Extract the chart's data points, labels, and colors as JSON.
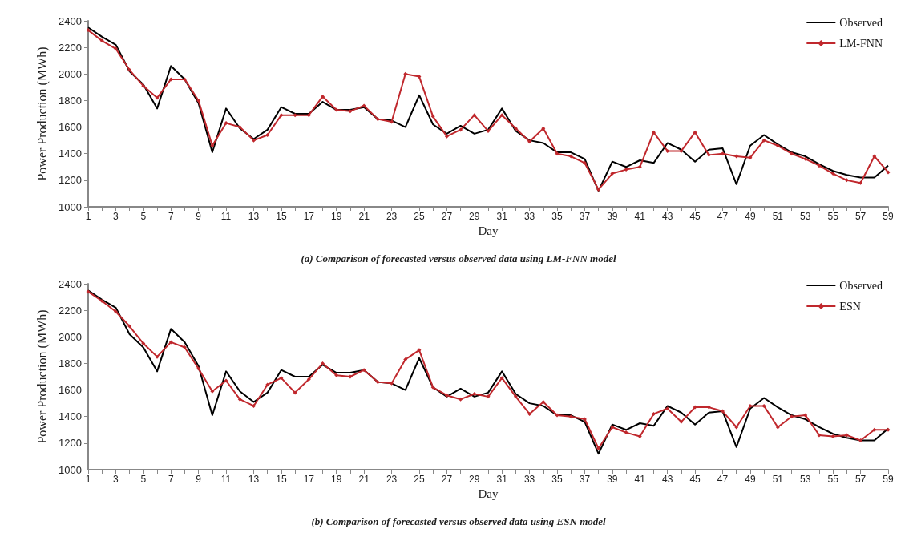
{
  "chart_data": [
    {
      "type": "line",
      "title": "(a) Comparison of forecasted versus observed data using LM-FNN model",
      "xlabel": "Day",
      "ylabel": "Power Production (MWh)",
      "x": [
        1,
        2,
        3,
        4,
        5,
        6,
        7,
        8,
        9,
        10,
        11,
        12,
        13,
        14,
        15,
        16,
        17,
        18,
        19,
        20,
        21,
        22,
        23,
        24,
        25,
        26,
        27,
        28,
        29,
        30,
        31,
        32,
        33,
        34,
        35,
        36,
        37,
        38,
        39,
        40,
        41,
        42,
        43,
        44,
        45,
        46,
        47,
        48,
        49,
        50,
        51,
        52,
        53,
        54,
        55,
        56,
        57,
        58,
        59
      ],
      "xlim": [
        1,
        59
      ],
      "xticks": [
        1,
        {
          "value": 2,
          "label": null
        },
        3,
        {
          "value": 4,
          "label": null
        },
        5,
        {
          "value": 6,
          "label": null
        },
        7,
        {
          "value": 8,
          "label": null
        },
        9,
        {
          "value": 10,
          "label": null
        },
        11,
        {
          "value": 12,
          "label": null
        },
        13,
        {
          "value": 14,
          "label": null
        },
        15,
        {
          "value": 16,
          "label": null
        },
        17,
        {
          "value": 18,
          "label": null
        },
        19,
        {
          "value": 20,
          "label": null
        },
        21,
        {
          "value": 22,
          "label": null
        },
        23,
        {
          "value": 24,
          "label": null
        },
        25,
        {
          "value": 26,
          "label": null
        },
        27,
        {
          "value": 28,
          "label": null
        },
        29,
        {
          "value": 30,
          "label": null
        },
        31,
        {
          "value": 32,
          "label": null
        },
        33,
        {
          "value": 34,
          "label": null
        },
        35,
        {
          "value": 36,
          "label": null
        },
        37,
        {
          "value": 38,
          "label": null
        },
        39,
        {
          "value": 40,
          "label": null
        },
        41,
        {
          "value": 42,
          "label": null
        },
        43,
        {
          "value": 44,
          "label": null
        },
        45,
        {
          "value": 46,
          "label": null
        },
        47,
        {
          "value": 48,
          "label": null
        },
        49,
        {
          "value": 50,
          "label": null
        },
        51,
        {
          "value": 52,
          "label": null
        },
        53,
        {
          "value": 54,
          "label": null
        },
        55,
        {
          "value": 56,
          "label": null
        },
        57,
        {
          "value": 58,
          "label": null
        },
        59
      ],
      "ylim": [
        1000,
        2400
      ],
      "yticks": [
        1000,
        1200,
        1400,
        1600,
        1800,
        2000,
        2200,
        2400
      ],
      "grid": false,
      "legend": "top right",
      "series": [
        {
          "name": "Observed",
          "color": "#000000",
          "marker": "none",
          "values": [
            2350,
            2280,
            2220,
            2020,
            1920,
            1740,
            2060,
            1960,
            1780,
            1410,
            1740,
            1590,
            1510,
            1580,
            1750,
            1700,
            1700,
            1790,
            1730,
            1730,
            1750,
            1660,
            1650,
            1600,
            1840,
            1620,
            1550,
            1610,
            1550,
            1580,
            1740,
            1570,
            1500,
            1480,
            1410,
            1410,
            1360,
            1120,
            1340,
            1300,
            1350,
            1330,
            1480,
            1430,
            1340,
            1430,
            1440,
            1170,
            1460,
            1540,
            1470,
            1410,
            1380,
            1320,
            1270,
            1240,
            1220,
            1220,
            1310
          ]
        },
        {
          "name": "LM-FNN",
          "color": "#c0282d",
          "marker": "diamond",
          "values": [
            2330,
            2250,
            2190,
            2030,
            1910,
            1820,
            1960,
            1960,
            1800,
            1460,
            1630,
            1600,
            1500,
            1540,
            1690,
            1690,
            1690,
            1830,
            1730,
            1720,
            1760,
            1660,
            1640,
            2000,
            1980,
            1680,
            1530,
            1580,
            1690,
            1570,
            1690,
            1590,
            1490,
            1590,
            1400,
            1380,
            1330,
            1130,
            1250,
            1280,
            1300,
            1560,
            1420,
            1420,
            1560,
            1390,
            1400,
            1380,
            1370,
            1500,
            1460,
            1400,
            1360,
            1310,
            1250,
            1200,
            1180,
            1380,
            1260
          ]
        }
      ]
    },
    {
      "type": "line",
      "title": "(b) Comparison of forecasted versus observed data using ESN model",
      "xlabel": "Day",
      "ylabel": "Power Production (MWh)",
      "x": [
        1,
        2,
        3,
        4,
        5,
        6,
        7,
        8,
        9,
        10,
        11,
        12,
        13,
        14,
        15,
        16,
        17,
        18,
        19,
        20,
        21,
        22,
        23,
        24,
        25,
        26,
        27,
        28,
        29,
        30,
        31,
        32,
        33,
        34,
        35,
        36,
        37,
        38,
        39,
        40,
        41,
        42,
        43,
        44,
        45,
        46,
        47,
        48,
        49,
        50,
        51,
        52,
        53,
        54,
        55,
        56,
        57,
        58,
        59
      ],
      "xlim": [
        1,
        59
      ],
      "xticks": [
        1,
        {
          "value": 2,
          "label": null
        },
        3,
        {
          "value": 4,
          "label": null
        },
        5,
        {
          "value": 6,
          "label": null
        },
        7,
        {
          "value": 8,
          "label": null
        },
        9,
        {
          "value": 10,
          "label": null
        },
        11,
        {
          "value": 12,
          "label": null
        },
        13,
        {
          "value": 14,
          "label": null
        },
        15,
        {
          "value": 16,
          "label": null
        },
        17,
        {
          "value": 18,
          "label": null
        },
        19,
        {
          "value": 20,
          "label": null
        },
        21,
        {
          "value": 22,
          "label": null
        },
        23,
        {
          "value": 24,
          "label": null
        },
        25,
        {
          "value": 26,
          "label": null
        },
        27,
        {
          "value": 28,
          "label": null
        },
        29,
        {
          "value": 30,
          "label": null
        },
        31,
        {
          "value": 32,
          "label": null
        },
        33,
        {
          "value": 34,
          "label": null
        },
        35,
        {
          "value": 36,
          "label": null
        },
        37,
        {
          "value": 38,
          "label": null
        },
        39,
        {
          "value": 40,
          "label": null
        },
        41,
        {
          "value": 42,
          "label": null
        },
        43,
        {
          "value": 44,
          "label": null
        },
        45,
        {
          "value": 46,
          "label": null
        },
        47,
        {
          "value": 48,
          "label": null
        },
        49,
        {
          "value": 50,
          "label": null
        },
        51,
        {
          "value": 52,
          "label": null
        },
        53,
        {
          "value": 54,
          "label": null
        },
        55,
        {
          "value": 56,
          "label": null
        },
        57,
        {
          "value": 58,
          "label": null
        },
        59
      ],
      "ylim": [
        1000,
        2400
      ],
      "yticks": [
        1000,
        1200,
        1400,
        1600,
        1800,
        2000,
        2200,
        2400
      ],
      "grid": false,
      "legend": "top right",
      "series": [
        {
          "name": "Observed",
          "color": "#000000",
          "marker": "none",
          "values": [
            2350,
            2280,
            2220,
            2020,
            1920,
            1740,
            2060,
            1960,
            1780,
            1410,
            1740,
            1590,
            1510,
            1580,
            1750,
            1700,
            1700,
            1790,
            1730,
            1730,
            1750,
            1660,
            1650,
            1600,
            1840,
            1620,
            1550,
            1610,
            1550,
            1580,
            1740,
            1570,
            1500,
            1480,
            1410,
            1410,
            1360,
            1120,
            1340,
            1300,
            1350,
            1330,
            1480,
            1430,
            1340,
            1430,
            1440,
            1170,
            1460,
            1540,
            1470,
            1410,
            1380,
            1320,
            1270,
            1240,
            1220,
            1220,
            1310
          ]
        },
        {
          "name": "ESN",
          "color": "#c0282d",
          "marker": "diamond",
          "values": [
            2340,
            2270,
            2190,
            2080,
            1950,
            1850,
            1960,
            1920,
            1760,
            1590,
            1670,
            1530,
            1480,
            1640,
            1690,
            1580,
            1680,
            1800,
            1710,
            1700,
            1750,
            1660,
            1650,
            1830,
            1900,
            1620,
            1560,
            1530,
            1570,
            1550,
            1690,
            1550,
            1420,
            1510,
            1410,
            1400,
            1380,
            1160,
            1320,
            1280,
            1250,
            1420,
            1460,
            1360,
            1470,
            1470,
            1440,
            1320,
            1480,
            1480,
            1320,
            1400,
            1410,
            1260,
            1250,
            1260,
            1220,
            1300,
            1300
          ]
        }
      ]
    }
  ]
}
